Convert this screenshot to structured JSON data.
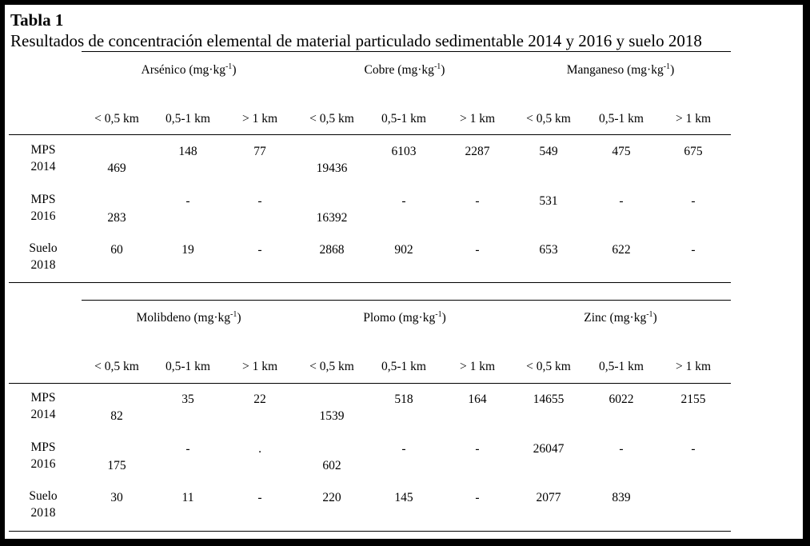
{
  "title": "Tabla 1",
  "subtitle": "Resultados de concentración elemental de material particulado sedimentable 2014 y 2016 y suelo 2018",
  "columns": [
    "< 0,5 km",
    "0,5-1 km",
    "> 1 km"
  ],
  "sections": [
    {
      "groups": [
        {
          "name": "Arsénico (mg·kg",
          "unit_sup": "-1",
          "unit_close": ")"
        },
        {
          "name": "Cobre (mg·kg",
          "unit_sup": "-1",
          "unit_close": ")"
        },
        {
          "name": "Manganeso (mg·kg",
          "unit_sup": "-1",
          "unit_close": ")"
        }
      ],
      "rows": [
        {
          "label": [
            "MPS",
            "2014"
          ],
          "cells": [
            {
              "v": "469",
              "pos": "low"
            },
            {
              "v": "148",
              "pos": "high"
            },
            {
              "v": "77",
              "pos": "high"
            },
            {
              "v": "19436",
              "pos": "low"
            },
            {
              "v": "6103",
              "pos": "high"
            },
            {
              "v": "2287",
              "pos": "high"
            },
            {
              "v": "549",
              "pos": "high"
            },
            {
              "v": "475",
              "pos": "high"
            },
            {
              "v": "675",
              "pos": "high"
            }
          ]
        },
        {
          "label": [
            "MPS",
            "2016"
          ],
          "cells": [
            {
              "v": "283",
              "pos": "low"
            },
            {
              "v": "-",
              "pos": "high"
            },
            {
              "v": "-",
              "pos": "high"
            },
            {
              "v": "16392",
              "pos": "low"
            },
            {
              "v": "-",
              "pos": "high"
            },
            {
              "v": "-",
              "pos": "high"
            },
            {
              "v": "531",
              "pos": "high"
            },
            {
              "v": "-",
              "pos": "high"
            },
            {
              "v": "-",
              "pos": "high"
            }
          ]
        },
        {
          "label": [
            "Suelo",
            "2018"
          ],
          "cells": [
            {
              "v": "60",
              "pos": "high"
            },
            {
              "v": "19",
              "pos": "high"
            },
            {
              "v": "-",
              "pos": "high"
            },
            {
              "v": "2868",
              "pos": "high"
            },
            {
              "v": "902",
              "pos": "high"
            },
            {
              "v": "-",
              "pos": "high"
            },
            {
              "v": "653",
              "pos": "high"
            },
            {
              "v": "622",
              "pos": "high"
            },
            {
              "v": "-",
              "pos": "high"
            }
          ]
        }
      ]
    },
    {
      "groups": [
        {
          "name": "Molibdeno (mg·kg",
          "unit_sup": "-1",
          "unit_close": ")"
        },
        {
          "name": "Plomo (mg·kg",
          "unit_sup": "-1",
          "unit_close": ")"
        },
        {
          "name": "Zinc (mg·kg",
          "unit_sup": "-1",
          "unit_close": ")"
        }
      ],
      "rows": [
        {
          "label": [
            "MPS",
            "2014"
          ],
          "cells": [
            {
              "v": "82",
              "pos": "low"
            },
            {
              "v": "35",
              "pos": "high"
            },
            {
              "v": "22",
              "pos": "high"
            },
            {
              "v": "1539",
              "pos": "low"
            },
            {
              "v": "518",
              "pos": "high"
            },
            {
              "v": "164",
              "pos": "high"
            },
            {
              "v": "14655",
              "pos": "high"
            },
            {
              "v": "6022",
              "pos": "high"
            },
            {
              "v": "2155",
              "pos": "high"
            }
          ]
        },
        {
          "label": [
            "MPS",
            "2016"
          ],
          "cells": [
            {
              "v": "175",
              "pos": "low"
            },
            {
              "v": "-",
              "pos": "high"
            },
            {
              "v": ".",
              "pos": "high"
            },
            {
              "v": "602",
              "pos": "low"
            },
            {
              "v": "-",
              "pos": "high"
            },
            {
              "v": "-",
              "pos": "high"
            },
            {
              "v": "26047",
              "pos": "high"
            },
            {
              "v": "-",
              "pos": "high"
            },
            {
              "v": "-",
              "pos": "high"
            }
          ]
        },
        {
          "label": [
            "Suelo",
            "2018"
          ],
          "cells": [
            {
              "v": "30",
              "pos": "high"
            },
            {
              "v": "11",
              "pos": "high"
            },
            {
              "v": "-",
              "pos": "high"
            },
            {
              "v": "220",
              "pos": "high"
            },
            {
              "v": "145",
              "pos": "high"
            },
            {
              "v": "-",
              "pos": "high"
            },
            {
              "v": "2077",
              "pos": "high"
            },
            {
              "v": "839",
              "pos": "high"
            },
            {
              "v": "",
              "pos": "high"
            }
          ]
        }
      ]
    }
  ]
}
